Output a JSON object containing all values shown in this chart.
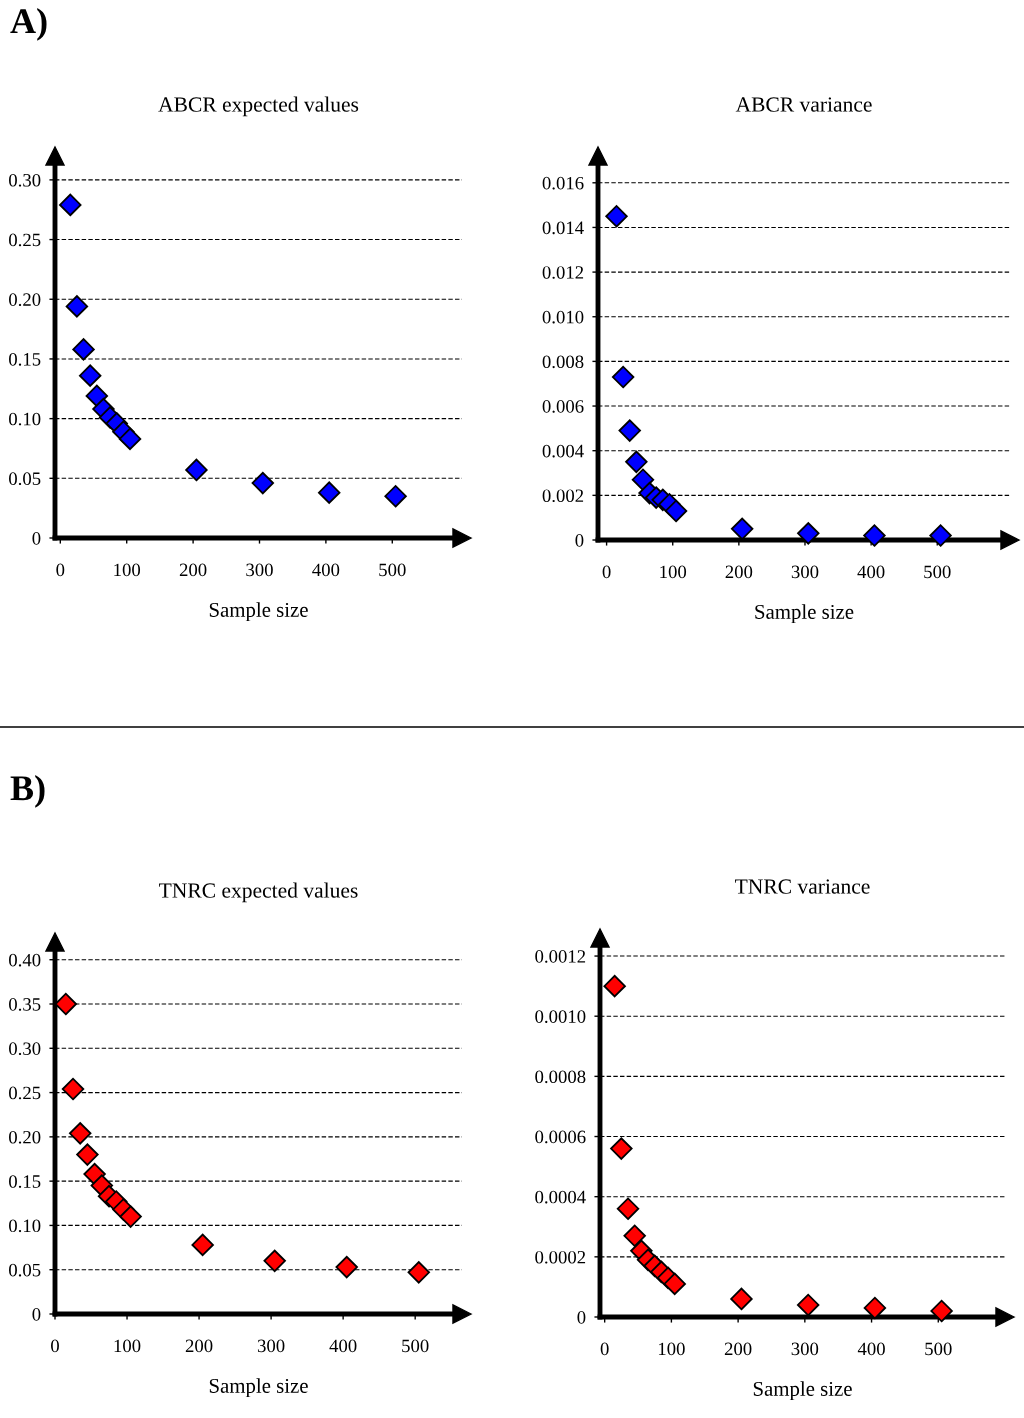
{
  "chart_data": [
    {
      "type": "scatter",
      "title": "ABCR expected values",
      "xlabel": "Sample size",
      "annotations": [
        "A)"
      ],
      "marker": "diamond",
      "grid": "y",
      "x": [
        15,
        25,
        35,
        45,
        55,
        65,
        75,
        85,
        95,
        105,
        205,
        305,
        405,
        505
      ],
      "series": [
        {
          "color": "#0000ff",
          "values": [
            0.279,
            0.194,
            0.158,
            0.136,
            0.119,
            0.108,
            0.101,
            0.096,
            0.089,
            0.083,
            0.057,
            0.046,
            0.038,
            0.035
          ]
        }
      ],
      "xlim": [
        -8,
        605
      ],
      "xticks": [
        0,
        100,
        200,
        300,
        400,
        500
      ],
      "ylim": [
        0,
        0.32
      ],
      "yticks": [
        0,
        0.05,
        {
          "value": 0.1,
          "label": "0.10"
        },
        0.15,
        {
          "value": 0.2,
          "label": "0.20"
        },
        0.25,
        {
          "value": 0.3,
          "label": "0.30"
        }
      ]
    },
    {
      "type": "scatter",
      "title": "ABCR variance",
      "xlabel": "Sample size",
      "marker": "diamond",
      "grid": "y",
      "x": [
        15,
        25,
        35,
        45,
        55,
        65,
        75,
        85,
        95,
        105,
        205,
        305,
        405,
        505
      ],
      "series": [
        {
          "color": "#0000ff",
          "values": [
            0.0145,
            0.0073,
            0.0049,
            0.0035,
            0.0027,
            0.0021,
            0.0019,
            0.0018,
            0.0016,
            0.0013,
            0.0005,
            0.0003,
            0.0002,
            0.0002
          ]
        }
      ],
      "xlim": [
        -13,
        610
      ],
      "xticks": [
        0,
        100,
        200,
        300,
        400,
        500
      ],
      "ylim": [
        0,
        0.0172
      ],
      "yticks": [
        0,
        0.002,
        0.004,
        0.006,
        0.008,
        {
          "value": 0.01,
          "label": "0.010"
        },
        0.012,
        0.014,
        0.016
      ]
    },
    {
      "type": "scatter",
      "title": "TNRC expected values",
      "xlabel": "Sample size",
      "annotations": [
        "B)"
      ],
      "marker": "diamond",
      "grid": "y",
      "x": [
        15,
        25,
        35,
        45,
        55,
        65,
        75,
        85,
        95,
        105,
        205,
        305,
        405,
        505
      ],
      "series": [
        {
          "color": "#ff0000",
          "values": [
            0.35,
            0.254,
            0.204,
            0.18,
            0.158,
            0.145,
            0.133,
            0.127,
            0.118,
            0.11,
            0.078,
            0.06,
            0.053,
            0.047
          ]
        }
      ],
      "xlim": [
        0,
        565
      ],
      "xticks": [
        0,
        100,
        200,
        300,
        400,
        500
      ],
      "ylim": [
        0,
        0.42
      ],
      "yticks": [
        0,
        0.05,
        {
          "value": 0.1,
          "label": "0.10"
        },
        0.15,
        {
          "value": 0.2,
          "label": "0.20"
        },
        0.25,
        {
          "value": 0.3,
          "label": "0.30"
        },
        0.35,
        {
          "value": 0.4,
          "label": "0.40"
        }
      ]
    },
    {
      "type": "scatter",
      "title": "TNRC variance",
      "xlabel": "Sample size",
      "marker": "diamond",
      "grid": "y",
      "x": [
        15,
        25,
        35,
        45,
        55,
        65,
        75,
        85,
        95,
        105,
        205,
        305,
        405,
        505
      ],
      "series": [
        {
          "color": "#ff0000",
          "values": [
            0.0011,
            0.00056,
            0.00036,
            0.00027,
            0.00022,
            0.00019,
            0.00017,
            0.00015,
            0.00013,
            0.00011,
            6e-05,
            4e-05,
            3e-05,
            2e-05
          ]
        }
      ],
      "xlim": [
        -7,
        600
      ],
      "xticks": [
        0,
        100,
        200,
        300,
        400,
        500
      ],
      "ylim": [
        0,
        0.00126
      ],
      "yticks": [
        {
          "value": 0,
          "label": "0"
        },
        0.0002,
        0.0004,
        0.0006,
        0.0008,
        {
          "value": 0.001,
          "label": "0.0010"
        },
        0.0012
      ]
    }
  ]
}
